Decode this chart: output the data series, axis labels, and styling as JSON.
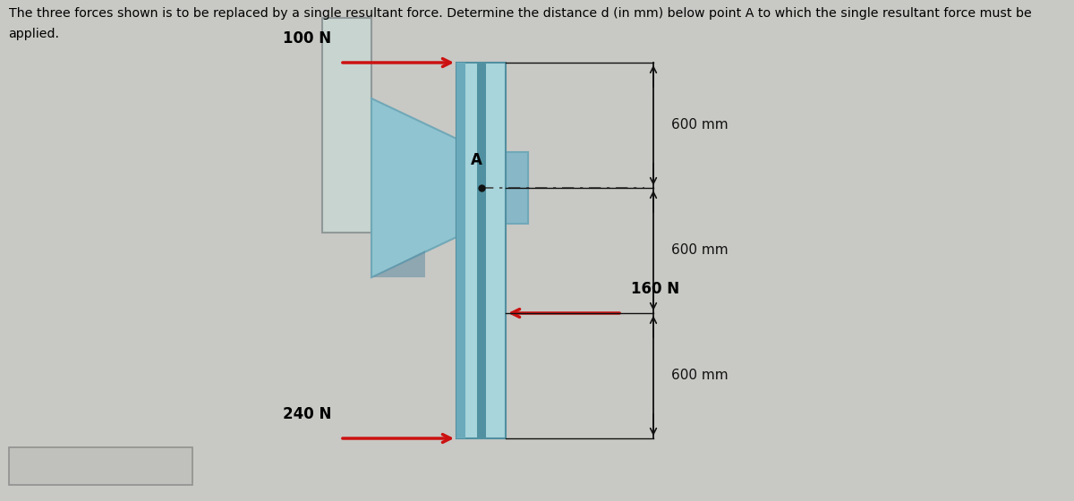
{
  "title_line1": "The three forces shown is to be replaced by a single resultant force. Determine the distance d (in mm) below point A to which the single resultant force must be",
  "title_line2": "applied.",
  "bg_color": "#c8c8c4",
  "beam_light": "#a8d4dc",
  "beam_mid": "#88c0cc",
  "beam_dark": "#5090a0",
  "beam_stripe": "#6aaabb",
  "wall_plate_color": "#c8d4d0",
  "wall_plate_edge": "#909898",
  "flange_color": "#90c4d0",
  "flange_dark": "#70a8b8",
  "flange_shadow": "#5888a0",
  "cap_color": "#88b8c8",
  "arrow_color": "#cc1111",
  "dim_color": "#111111",
  "dot_color": "#111111",
  "dash_color": "#444444",
  "force_100_label": "100 N",
  "force_160_label": "160 N",
  "force_240_label": "240 N",
  "dim_labels": [
    "600 mm",
    "600 mm",
    "600 mm"
  ],
  "point_A_label": "A",
  "ans_box_color": "#c0c0bc",
  "ans_box_edge": "#909090"
}
